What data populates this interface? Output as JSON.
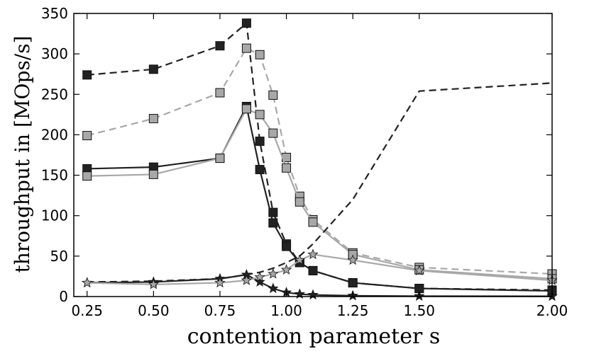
{
  "chart_data": {
    "type": "line",
    "xlabel": "contention parameter s",
    "ylabel": "throughput in [MOps/s]",
    "xlim": [
      0.2,
      2.0
    ],
    "ylim": [
      0,
      350
    ],
    "xticks": [
      "0.25",
      "0.50",
      "0.75",
      "1.00",
      "1.25",
      "1.50",
      "2.00"
    ],
    "yticks": [
      "0",
      "50",
      "100",
      "150",
      "200",
      "250",
      "300",
      "350"
    ],
    "grid": false,
    "legend": "none",
    "series": [
      {
        "color": "#222222",
        "dash": "dashed",
        "marker": "square",
        "x": [
          0.25,
          0.5,
          0.75,
          0.85,
          0.9,
          0.95,
          1.0,
          1.05,
          1.1,
          1.25,
          1.5,
          2.0
        ],
        "y": [
          274,
          281,
          310,
          338,
          192,
          104,
          65,
          42,
          32,
          17,
          10,
          8
        ]
      },
      {
        "color": "#a8a8a8",
        "dash": "dashed",
        "marker": "square",
        "x": [
          0.25,
          0.5,
          0.75,
          0.85,
          0.9,
          0.95,
          1.0,
          1.05,
          1.1,
          1.25,
          1.5,
          2.0
        ],
        "y": [
          199,
          220,
          252,
          307,
          299,
          249,
          172,
          124,
          95,
          54,
          36,
          28
        ]
      },
      {
        "color": "#222222",
        "dash": "solid",
        "marker": "square",
        "x": [
          0.25,
          0.5,
          0.75,
          0.85,
          0.9,
          0.95,
          1.0,
          1.05,
          1.1,
          1.25,
          1.5,
          2.0
        ],
        "y": [
          158,
          160,
          171,
          235,
          157,
          91,
          62,
          42,
          32,
          17,
          10,
          7
        ]
      },
      {
        "color": "#a8a8a8",
        "dash": "solid",
        "marker": "square",
        "x": [
          0.25,
          0.5,
          0.75,
          0.85,
          0.9,
          0.95,
          1.0,
          1.05,
          1.1,
          1.25,
          1.5,
          2.0
        ],
        "y": [
          149,
          151,
          171,
          232,
          225,
          202,
          159,
          117,
          92,
          52,
          33,
          22
        ]
      },
      {
        "color": "#222222",
        "dash": "dashed",
        "marker": "none",
        "x": [
          0.25,
          0.5,
          0.75,
          0.85,
          0.9,
          0.95,
          1.0,
          1.05,
          1.1,
          1.25,
          1.5,
          2.0
        ],
        "y": [
          18,
          19,
          22,
          27,
          30,
          35,
          42,
          50,
          65,
          120,
          254,
          264
        ]
      },
      {
        "color": "#222222",
        "dash": "solid",
        "marker": "star",
        "x": [
          0.25,
          0.5,
          0.75,
          0.85,
          0.9,
          0.95,
          1.0,
          1.05,
          1.1,
          1.25,
          1.5,
          2.0
        ],
        "y": [
          17,
          18,
          22,
          27,
          18,
          10,
          5,
          3,
          2,
          1,
          0.5,
          0.3
        ]
      },
      {
        "color": "#a8a8a8",
        "dash": "solid",
        "marker": "star",
        "x": [
          0.25,
          0.5,
          0.75,
          0.85,
          0.9,
          0.95,
          1.0,
          1.05,
          1.1,
          1.25,
          1.5,
          2.0
        ],
        "y": [
          17,
          15,
          17,
          20,
          24,
          28,
          33,
          45,
          52,
          45,
          32,
          20
        ]
      }
    ]
  }
}
